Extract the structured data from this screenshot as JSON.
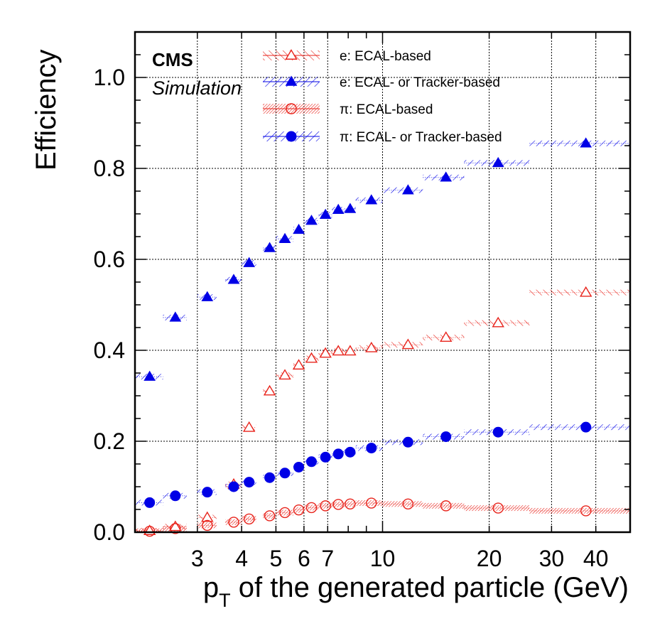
{
  "chart_data": {
    "type": "scatter",
    "xscale": "log",
    "xlim": [
      2.0,
      50
    ],
    "ylim": [
      0.0,
      1.1
    ],
    "grid": true,
    "legend_position": "top",
    "experiment_label": "CMS",
    "status_label": "Simulation",
    "ylabel": "Efficiency",
    "xlabel_prefix": "p",
    "xlabel_subscript": "T",
    "xlabel_suffix": "of the generated particle (GeV)",
    "x_tick_labels": [
      {
        "value": 3,
        "label": "3"
      },
      {
        "value": 4,
        "label": "4"
      },
      {
        "value": 5,
        "label": "5"
      },
      {
        "value": 6,
        "label": "6"
      },
      {
        "value": 7,
        "label": "7"
      },
      {
        "value": 10,
        "label": "10"
      },
      {
        "value": 20,
        "label": "20"
      },
      {
        "value": 30,
        "label": "30"
      },
      {
        "value": 40,
        "label": "40"
      }
    ],
    "y_tick_labels": [
      {
        "value": 0.0,
        "label": "0.0"
      },
      {
        "value": 0.2,
        "label": "0.2"
      },
      {
        "value": 0.4,
        "label": "0.4"
      },
      {
        "value": 0.6,
        "label": "0.6"
      },
      {
        "value": 0.8,
        "label": "0.8"
      },
      {
        "value": 1.0,
        "label": "1.0"
      }
    ],
    "series": [
      {
        "name": "e: ECAL-based",
        "color": "#e8231b",
        "marker": "triangle-open",
        "points": [
          {
            "x": 2.2,
            "y": 0.003,
            "lo": 2.0,
            "hi": 2.4
          },
          {
            "x": 2.6,
            "y": 0.012,
            "lo": 2.4,
            "hi": 2.8
          },
          {
            "x": 3.2,
            "y": 0.032,
            "lo": 3.0,
            "hi": 3.4
          },
          {
            "x": 3.8,
            "y": 0.105,
            "lo": 3.6,
            "hi": 4.0
          },
          {
            "x": 4.2,
            "y": 0.23,
            "lo": 4.0,
            "hi": 4.4
          },
          {
            "x": 4.8,
            "y": 0.31,
            "lo": 4.6,
            "hi": 5.0
          },
          {
            "x": 5.3,
            "y": 0.345,
            "lo": 5.0,
            "hi": 5.6
          },
          {
            "x": 5.8,
            "y": 0.367,
            "lo": 5.6,
            "hi": 6.0
          },
          {
            "x": 6.3,
            "y": 0.382,
            "lo": 6.0,
            "hi": 6.6
          },
          {
            "x": 6.9,
            "y": 0.393,
            "lo": 6.6,
            "hi": 7.2
          },
          {
            "x": 7.5,
            "y": 0.398,
            "lo": 7.2,
            "hi": 7.8
          },
          {
            "x": 8.1,
            "y": 0.398,
            "lo": 7.8,
            "hi": 8.4
          },
          {
            "x": 9.3,
            "y": 0.405,
            "lo": 8.4,
            "hi": 10.0
          },
          {
            "x": 11.8,
            "y": 0.412,
            "lo": 10.0,
            "hi": 13.0
          },
          {
            "x": 15.1,
            "y": 0.428,
            "lo": 13.0,
            "hi": 17.0
          },
          {
            "x": 21.2,
            "y": 0.46,
            "lo": 17.0,
            "hi": 26.0
          },
          {
            "x": 37.5,
            "y": 0.527,
            "lo": 26.0,
            "hi": 50.0
          }
        ]
      },
      {
        "name": "e: ECAL- or Tracker-based",
        "color": "#0000e6",
        "marker": "triangle-filled",
        "points": [
          {
            "x": 2.2,
            "y": 0.342,
            "lo": 2.0,
            "hi": 2.4
          },
          {
            "x": 2.6,
            "y": 0.472,
            "lo": 2.4,
            "hi": 2.8
          },
          {
            "x": 3.2,
            "y": 0.517,
            "lo": 3.0,
            "hi": 3.4
          },
          {
            "x": 3.8,
            "y": 0.555,
            "lo": 3.6,
            "hi": 4.0
          },
          {
            "x": 4.2,
            "y": 0.592,
            "lo": 4.0,
            "hi": 4.4
          },
          {
            "x": 4.8,
            "y": 0.625,
            "lo": 4.6,
            "hi": 5.0
          },
          {
            "x": 5.3,
            "y": 0.645,
            "lo": 5.0,
            "hi": 5.6
          },
          {
            "x": 5.8,
            "y": 0.665,
            "lo": 5.6,
            "hi": 6.0
          },
          {
            "x": 6.3,
            "y": 0.685,
            "lo": 6.0,
            "hi": 6.6
          },
          {
            "x": 6.9,
            "y": 0.698,
            "lo": 6.6,
            "hi": 7.2
          },
          {
            "x": 7.5,
            "y": 0.709,
            "lo": 7.2,
            "hi": 7.8
          },
          {
            "x": 8.1,
            "y": 0.711,
            "lo": 7.8,
            "hi": 8.4
          },
          {
            "x": 9.3,
            "y": 0.73,
            "lo": 8.4,
            "hi": 10.0
          },
          {
            "x": 11.8,
            "y": 0.752,
            "lo": 10.0,
            "hi": 13.0
          },
          {
            "x": 15.1,
            "y": 0.78,
            "lo": 13.0,
            "hi": 17.0
          },
          {
            "x": 21.2,
            "y": 0.812,
            "lo": 17.0,
            "hi": 26.0
          },
          {
            "x": 37.5,
            "y": 0.855,
            "lo": 26.0,
            "hi": 50.0
          }
        ]
      },
      {
        "name": "π: ECAL-based",
        "color": "#e8231b",
        "marker": "circle-open",
        "points": [
          {
            "x": 2.2,
            "y": 0.002,
            "lo": 2.0,
            "hi": 2.4
          },
          {
            "x": 2.6,
            "y": 0.008,
            "lo": 2.4,
            "hi": 2.8
          },
          {
            "x": 3.2,
            "y": 0.015,
            "lo": 3.0,
            "hi": 3.4
          },
          {
            "x": 3.8,
            "y": 0.022,
            "lo": 3.6,
            "hi": 4.0
          },
          {
            "x": 4.2,
            "y": 0.029,
            "lo": 4.0,
            "hi": 4.4
          },
          {
            "x": 4.8,
            "y": 0.036,
            "lo": 4.6,
            "hi": 5.0
          },
          {
            "x": 5.3,
            "y": 0.043,
            "lo": 5.0,
            "hi": 5.6
          },
          {
            "x": 5.8,
            "y": 0.049,
            "lo": 5.6,
            "hi": 6.0
          },
          {
            "x": 6.3,
            "y": 0.054,
            "lo": 6.0,
            "hi": 6.6
          },
          {
            "x": 6.9,
            "y": 0.058,
            "lo": 6.6,
            "hi": 7.2
          },
          {
            "x": 7.5,
            "y": 0.061,
            "lo": 7.2,
            "hi": 7.8
          },
          {
            "x": 8.1,
            "y": 0.062,
            "lo": 7.8,
            "hi": 8.4
          },
          {
            "x": 9.3,
            "y": 0.064,
            "lo": 8.4,
            "hi": 10.0
          },
          {
            "x": 11.8,
            "y": 0.062,
            "lo": 10.0,
            "hi": 13.0
          },
          {
            "x": 15.1,
            "y": 0.058,
            "lo": 13.0,
            "hi": 17.0
          },
          {
            "x": 21.2,
            "y": 0.053,
            "lo": 17.0,
            "hi": 26.0
          },
          {
            "x": 37.5,
            "y": 0.047,
            "lo": 26.0,
            "hi": 50.0
          }
        ]
      },
      {
        "name": "π: ECAL- or Tracker-based",
        "color": "#0000e6",
        "marker": "circle-filled",
        "points": [
          {
            "x": 2.2,
            "y": 0.065,
            "lo": 2.0,
            "hi": 2.4
          },
          {
            "x": 2.6,
            "y": 0.08,
            "lo": 2.4,
            "hi": 2.8
          },
          {
            "x": 3.2,
            "y": 0.088,
            "lo": 3.0,
            "hi": 3.4
          },
          {
            "x": 3.8,
            "y": 0.1,
            "lo": 3.6,
            "hi": 4.0
          },
          {
            "x": 4.2,
            "y": 0.11,
            "lo": 4.0,
            "hi": 4.4
          },
          {
            "x": 4.8,
            "y": 0.12,
            "lo": 4.6,
            "hi": 5.0
          },
          {
            "x": 5.3,
            "y": 0.13,
            "lo": 5.0,
            "hi": 5.6
          },
          {
            "x": 5.8,
            "y": 0.143,
            "lo": 5.6,
            "hi": 6.0
          },
          {
            "x": 6.3,
            "y": 0.155,
            "lo": 6.0,
            "hi": 6.6
          },
          {
            "x": 6.9,
            "y": 0.165,
            "lo": 6.6,
            "hi": 7.2
          },
          {
            "x": 7.5,
            "y": 0.172,
            "lo": 7.2,
            "hi": 7.8
          },
          {
            "x": 8.1,
            "y": 0.176,
            "lo": 7.8,
            "hi": 8.4
          },
          {
            "x": 9.3,
            "y": 0.185,
            "lo": 8.4,
            "hi": 10.0
          },
          {
            "x": 11.8,
            "y": 0.198,
            "lo": 10.0,
            "hi": 13.0
          },
          {
            "x": 15.1,
            "y": 0.21,
            "lo": 13.0,
            "hi": 17.0
          },
          {
            "x": 21.2,
            "y": 0.22,
            "lo": 17.0,
            "hi": 26.0
          },
          {
            "x": 37.5,
            "y": 0.231,
            "lo": 26.0,
            "hi": 50.0
          }
        ]
      }
    ]
  }
}
